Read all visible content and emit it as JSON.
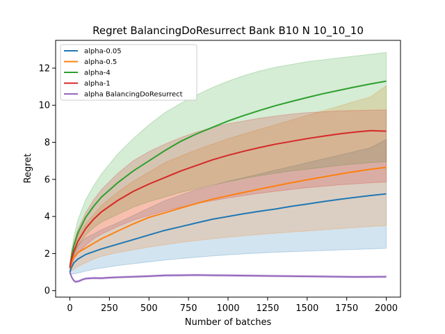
{
  "chart_data": {
    "type": "line",
    "title": "Regret BalancingDoResurrect Bank B10 N 10_10_10",
    "xlabel": "Number of batches",
    "ylabel": "Regret",
    "xlim": [
      -90,
      2090
    ],
    "ylim": [
      -0.35,
      13.5
    ],
    "xticks": [
      0,
      250,
      500,
      750,
      1000,
      1250,
      1500,
      1750,
      2000
    ],
    "yticks": [
      0,
      2,
      4,
      6,
      8,
      10,
      12
    ],
    "grid": false,
    "legend_position": "top-left",
    "shaded_band": "uncertainty band around each series",
    "series": [
      {
        "name": "alpha-0.05",
        "color": "#1f77b4",
        "x": [
          0,
          10,
          25,
          50,
          100,
          150,
          200,
          300,
          400,
          500,
          600,
          700,
          800,
          900,
          1000,
          1100,
          1200,
          1300,
          1400,
          1500,
          1600,
          1700,
          1800,
          1900,
          2000
        ],
        "values": [
          1.0,
          1.25,
          1.5,
          1.7,
          1.95,
          2.1,
          2.25,
          2.5,
          2.75,
          3.0,
          3.25,
          3.45,
          3.65,
          3.85,
          4.0,
          4.15,
          4.28,
          4.4,
          4.55,
          4.67,
          4.8,
          4.92,
          5.03,
          5.13,
          5.22
        ],
        "lower": [
          0.9,
          0.9,
          0.9,
          0.95,
          1.05,
          1.15,
          1.22,
          1.35,
          1.45,
          1.55,
          1.65,
          1.73,
          1.8,
          1.87,
          1.93,
          1.98,
          2.03,
          2.07,
          2.1,
          2.13,
          2.16,
          2.19,
          2.22,
          2.25,
          2.28
        ],
        "upper": [
          1.1,
          1.6,
          2.05,
          2.45,
          2.85,
          3.05,
          3.28,
          3.65,
          4.05,
          4.45,
          4.85,
          5.15,
          5.45,
          5.65,
          5.9,
          6.1,
          6.3,
          6.5,
          6.7,
          6.9,
          7.1,
          7.3,
          7.5,
          7.7,
          8.15
        ]
      },
      {
        "name": "alpha-0.5",
        "color": "#ff7f0e",
        "x": [
          0,
          10,
          25,
          50,
          100,
          150,
          200,
          300,
          400,
          500,
          600,
          700,
          800,
          900,
          1000,
          1100,
          1200,
          1300,
          1400,
          1500,
          1600,
          1700,
          1800,
          1900,
          2000
        ],
        "values": [
          1.2,
          1.5,
          1.8,
          2.05,
          2.3,
          2.55,
          2.8,
          3.2,
          3.6,
          3.95,
          4.2,
          4.45,
          4.7,
          4.93,
          5.12,
          5.3,
          5.48,
          5.65,
          5.82,
          5.98,
          6.13,
          6.28,
          6.42,
          6.55,
          6.65
        ],
        "lower": [
          1.0,
          1.05,
          1.15,
          1.3,
          1.5,
          1.7,
          1.85,
          2.05,
          2.2,
          2.35,
          2.48,
          2.6,
          2.7,
          2.8,
          2.88,
          2.96,
          3.03,
          3.1,
          3.16,
          3.22,
          3.28,
          3.34,
          3.4,
          3.46,
          3.5
        ],
        "upper": [
          1.4,
          2.0,
          2.5,
          3.0,
          3.6,
          4.1,
          4.6,
          5.3,
          5.9,
          6.4,
          6.9,
          7.25,
          7.6,
          7.9,
          8.2,
          8.45,
          8.7,
          8.95,
          9.2,
          9.45,
          9.7,
          9.95,
          10.2,
          10.45,
          11.05
        ]
      },
      {
        "name": "alpha-4",
        "color": "#2ca02c",
        "x": [
          0,
          10,
          25,
          50,
          100,
          150,
          200,
          300,
          400,
          500,
          600,
          700,
          800,
          900,
          1000,
          1100,
          1200,
          1300,
          1400,
          1500,
          1600,
          1700,
          1800,
          1900,
          2000
        ],
        "values": [
          1.3,
          1.8,
          2.4,
          3.1,
          3.95,
          4.55,
          5.05,
          5.8,
          6.45,
          7.0,
          7.55,
          8.05,
          8.45,
          8.8,
          9.15,
          9.45,
          9.72,
          9.98,
          10.2,
          10.42,
          10.62,
          10.8,
          10.98,
          11.15,
          11.3
        ],
        "lower": [
          1.2,
          1.5,
          1.9,
          2.4,
          3.0,
          3.4,
          3.7,
          4.1,
          4.5,
          4.8,
          5.05,
          5.3,
          5.5,
          5.7,
          5.88,
          6.05,
          6.2,
          6.33,
          6.45,
          6.55,
          6.65,
          6.75,
          6.83,
          6.9,
          6.95
        ],
        "upper": [
          1.4,
          2.1,
          2.9,
          3.8,
          4.9,
          5.65,
          6.3,
          7.35,
          8.2,
          8.95,
          9.6,
          10.1,
          10.55,
          10.95,
          11.3,
          11.6,
          11.85,
          12.05,
          12.2,
          12.35,
          12.45,
          12.55,
          12.65,
          12.75,
          12.85
        ]
      },
      {
        "name": "alpha-1",
        "color": "#d62728",
        "x": [
          0,
          10,
          25,
          50,
          100,
          150,
          200,
          300,
          400,
          500,
          600,
          700,
          800,
          900,
          1000,
          1100,
          1200,
          1300,
          1400,
          1500,
          1600,
          1700,
          1800,
          1900,
          2000
        ],
        "values": [
          1.25,
          1.7,
          2.1,
          2.65,
          3.35,
          3.85,
          4.25,
          4.85,
          5.35,
          5.75,
          6.1,
          6.45,
          6.75,
          7.05,
          7.3,
          7.52,
          7.72,
          7.9,
          8.05,
          8.2,
          8.33,
          8.45,
          8.55,
          8.63,
          8.6
        ],
        "lower": [
          1.1,
          1.35,
          1.7,
          2.0,
          2.45,
          2.8,
          3.05,
          3.45,
          3.8,
          4.05,
          4.3,
          4.5,
          4.7,
          4.85,
          5.0,
          5.13,
          5.25,
          5.36,
          5.46,
          5.55,
          5.63,
          5.7,
          5.76,
          5.82,
          5.85
        ],
        "upper": [
          1.4,
          2.1,
          2.6,
          3.3,
          4.2,
          4.9,
          5.45,
          6.3,
          7.0,
          7.5,
          7.9,
          8.25,
          8.55,
          8.8,
          9.0,
          9.15,
          9.3,
          9.42,
          9.52,
          9.6,
          9.65,
          9.7,
          9.72,
          9.73,
          9.75
        ]
      },
      {
        "name": "alpha BalancingDoResurrect",
        "color": "#9467bd",
        "x": [
          0,
          10,
          20,
          30,
          40,
          60,
          80,
          100,
          150,
          200,
          250,
          300,
          400,
          500,
          600,
          700,
          800,
          900,
          1000,
          1200,
          1400,
          1600,
          1800,
          2000
        ],
        "values": [
          1.0,
          0.75,
          0.6,
          0.5,
          0.48,
          0.52,
          0.6,
          0.65,
          0.68,
          0.67,
          0.7,
          0.72,
          0.75,
          0.78,
          0.82,
          0.83,
          0.84,
          0.83,
          0.82,
          0.8,
          0.78,
          0.76,
          0.74,
          0.75
        ],
        "lower": [
          0.95,
          0.7,
          0.55,
          0.45,
          0.43,
          0.47,
          0.55,
          0.6,
          0.63,
          0.62,
          0.65,
          0.67,
          0.7,
          0.73,
          0.77,
          0.78,
          0.79,
          0.78,
          0.77,
          0.75,
          0.73,
          0.71,
          0.69,
          0.7
        ],
        "upper": [
          1.05,
          0.8,
          0.65,
          0.55,
          0.53,
          0.57,
          0.65,
          0.7,
          0.73,
          0.72,
          0.75,
          0.77,
          0.8,
          0.83,
          0.87,
          0.88,
          0.89,
          0.88,
          0.87,
          0.85,
          0.83,
          0.81,
          0.79,
          0.8
        ]
      }
    ]
  }
}
